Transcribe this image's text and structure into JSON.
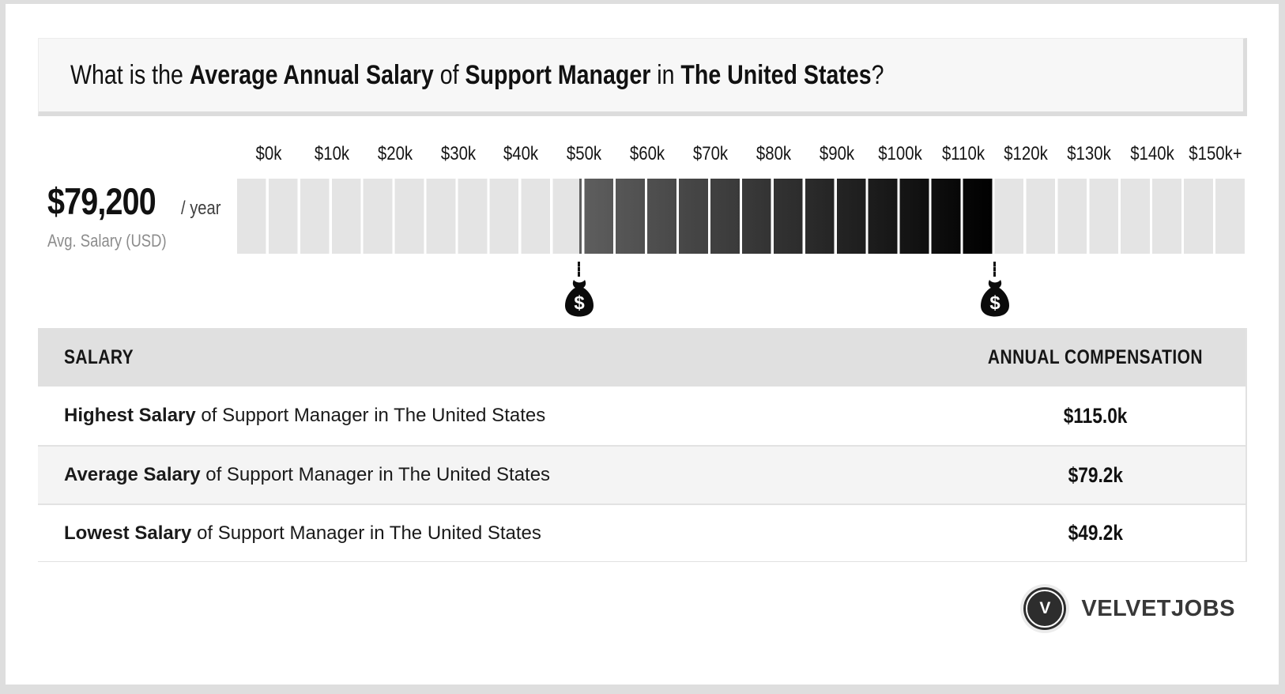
{
  "header": {
    "question": {
      "prefix": "What is the ",
      "bold_1": "Average Annual Salary",
      "mid_1": " of ",
      "bold_2": "Support Manager",
      "mid_2": " in ",
      "bold_3": "The United States",
      "suffix": "?"
    }
  },
  "summary": {
    "amount": "$79,200",
    "period": "/ year",
    "caption": "Avg. Salary (USD)"
  },
  "chart_data": {
    "type": "range-bar",
    "title": "Salary scale for Support Manager in The United States",
    "axis_unit": "USD, thousands per year",
    "ticks": [
      "$0k",
      "$10k",
      "$20k",
      "$30k",
      "$40k",
      "$50k",
      "$60k",
      "$70k",
      "$80k",
      "$90k",
      "$100k",
      "$110k",
      "$120k",
      "$130k",
      "$140k",
      "$150k+"
    ],
    "axis_min_k": 0,
    "axis_max_k": 150,
    "segment_step_k": 5,
    "range_low_k": 49.2,
    "range_high_k": 115.0,
    "average_k": 79.2,
    "bag_symbol": "$",
    "marker_icon": "money-bag-icon"
  },
  "table": {
    "col_salary": "SALARY",
    "col_compensation": "ANNUAL COMPENSATION",
    "rows": [
      {
        "bold": "Highest Salary",
        "rest": " of Support Manager in The United States",
        "value": "$115.0k"
      },
      {
        "bold": "Average Salary",
        "rest": " of Support Manager in The United States",
        "value": "$79.2k"
      },
      {
        "bold": "Lowest Salary",
        "rest": " of Support Manager in The United States",
        "value": "$49.2k"
      }
    ]
  },
  "brand": {
    "name": "VELVETJOBS",
    "monogram": "V"
  },
  "colors": {
    "page_bg": "#dedede",
    "card_bg": "#ffffff",
    "header_box_bg": "#f7f7f7",
    "header_box_border": "#dcdcdc",
    "bar_segment": "#e4e4e4",
    "range_gradient_start": "#5f5f5f",
    "range_gradient_end": "#000000",
    "table_header_bg": "#e0e0e0",
    "row_alt_bg": "#f4f4f4",
    "divider": "#e2e2e2",
    "muted_text": "#8c8c8c",
    "dark_text": "#161616",
    "brand_dark": "#2d2d2d"
  }
}
